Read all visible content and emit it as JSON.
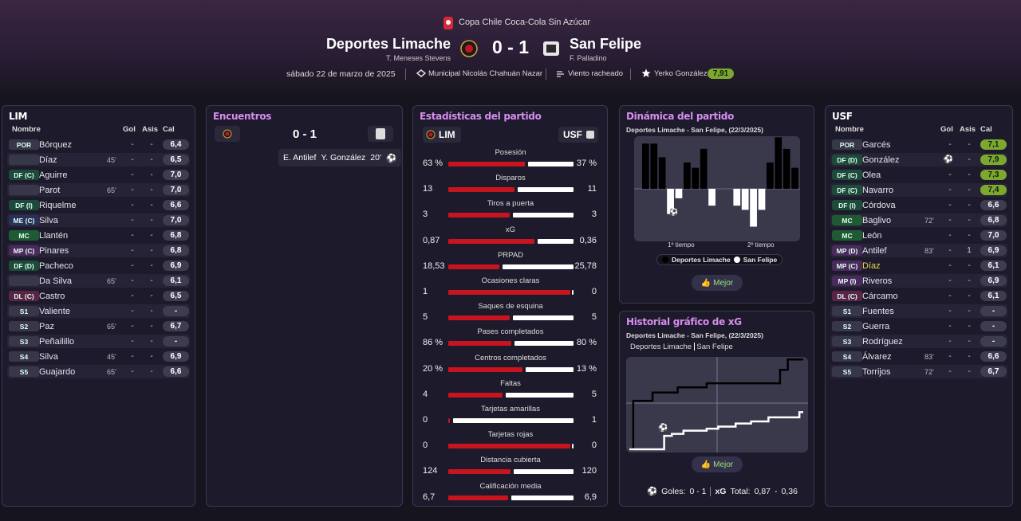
{
  "header": {
    "competition": "Copa Chile Coca-Cola Sin Azúcar",
    "home": "Deportes Limache",
    "home_coach": "T. Meneses Stevens",
    "score": "0 - 1",
    "away": "San Felipe",
    "away_coach": "F. Palladino",
    "date": "sábado 22 de marzo de 2025",
    "stadium": "Municipal Nicolás Chahuán Nazar",
    "weather": "Viento racheado",
    "mvp": "Yerko González",
    "mvp_rating": "7,91"
  },
  "home_lineup": {
    "title": "LIM",
    "columns": [
      "Nombre",
      "Gol",
      "Asis",
      "Cal"
    ],
    "rows": [
      {
        "pos": "POR",
        "name": "Bórquez",
        "gol": "-",
        "asis": "-",
        "cal": "6,4",
        "badge_color": "#38374a"
      },
      {
        "pos": null,
        "name": "Díaz",
        "sub": "out",
        "min": "45'",
        "gol": "-",
        "asis": "-",
        "cal": "6,5",
        "badge_color": "#38374a"
      },
      {
        "pos": "DF (C)",
        "name": "Aguirre",
        "gol": "-",
        "asis": "-",
        "cal": "7,0",
        "badge_color": "#1d4a3b"
      },
      {
        "pos": null,
        "name": "Parot",
        "sub": "out",
        "min": "65'",
        "gol": "-",
        "asis": "-",
        "cal": "7,0",
        "badge_color": "#38374a"
      },
      {
        "pos": "DF (I)",
        "name": "Riquelme",
        "gol": "-",
        "asis": "-",
        "cal": "6,6",
        "badge_color": "#1d4a3b"
      },
      {
        "pos": "ME (C)",
        "name": "Silva",
        "gol": "-",
        "asis": "-",
        "cal": "7,0",
        "badge_color": "#29305a"
      },
      {
        "pos": "MC",
        "name": "Llantén",
        "gol": "-",
        "asis": "-",
        "cal": "6,8",
        "badge_color": "#1f5a35"
      },
      {
        "pos": "MP (C)",
        "name": "Pinares",
        "gol": "-",
        "asis": "-",
        "cal": "6,8",
        "badge_color": "#4a2a5c"
      },
      {
        "pos": "DF (D)",
        "name": "Pacheco",
        "gol": "-",
        "asis": "-",
        "cal": "6,9",
        "badge_color": "#1d4a3b"
      },
      {
        "pos": null,
        "name": "Da Silva",
        "sub": "out",
        "min": "65'",
        "gol": "-",
        "asis": "-",
        "cal": "6,1",
        "badge_color": "#38374a"
      },
      {
        "pos": "DL (C)",
        "name": "Castro",
        "gol": "-",
        "asis": "-",
        "cal": "6,5",
        "badge_color": "#5a2446"
      },
      {
        "pos": "S1",
        "name": "Valiente",
        "gol": "-",
        "asis": "-",
        "cal": "-",
        "badge_color": "#38374a"
      },
      {
        "pos": "S2",
        "name": "Paz",
        "sub": "in",
        "min": "65'",
        "gol": "-",
        "asis": "-",
        "cal": "6,7",
        "badge_color": "#38374a"
      },
      {
        "pos": "S3",
        "name": "Peñailillo",
        "gol": "-",
        "asis": "-",
        "cal": "-",
        "badge_color": "#38374a"
      },
      {
        "pos": "S4",
        "name": "Silva",
        "sub": "in",
        "min": "45'",
        "gol": "-",
        "asis": "-",
        "cal": "6,9",
        "badge_color": "#38374a"
      },
      {
        "pos": "S5",
        "name": "Guajardo",
        "sub": "in",
        "min": "65'",
        "gol": "-",
        "asis": "-",
        "cal": "6,6",
        "badge_color": "#38374a"
      }
    ]
  },
  "away_lineup": {
    "title": "USF",
    "columns": [
      "Nombre",
      "Gol",
      "Asis",
      "Cal"
    ],
    "rows": [
      {
        "pos": "POR",
        "name": "Garcés",
        "gol": "-",
        "asis": "-",
        "cal": "7,1",
        "top": true,
        "badge_color": "#38374a"
      },
      {
        "pos": "DF (D)",
        "name": "González",
        "gol": null,
        "asis": "-",
        "cal": "7,9",
        "top": true,
        "badge_color": "#1d4a3b"
      },
      {
        "pos": "DF (C)",
        "name": "Olea",
        "gol": "-",
        "asis": "-",
        "cal": "7,3",
        "top": true,
        "badge_color": "#1d4a3b"
      },
      {
        "pos": "DF (C)",
        "name": "Navarro",
        "gol": "-",
        "asis": "-",
        "cal": "7,4",
        "top": true,
        "badge_color": "#1d4a3b"
      },
      {
        "pos": "DF (I)",
        "name": "Córdova",
        "gol": "-",
        "asis": "-",
        "cal": "6,6",
        "badge_color": "#1d4a3b"
      },
      {
        "pos": "MC",
        "name": "Baglivo",
        "sub": "out",
        "min": "72'",
        "gol": "-",
        "asis": "-",
        "cal": "6,8",
        "badge_color": "#1f5a35"
      },
      {
        "pos": "MC",
        "name": "León",
        "gol": "-",
        "asis": "-",
        "cal": "7,0",
        "badge_color": "#1f5a35"
      },
      {
        "pos": "MP (D)",
        "name": "Antilef",
        "sub": "out",
        "min": "83'",
        "gol": "-",
        "asis": "1",
        "cal": "6,9",
        "badge_color": "#4a2a5c"
      },
      {
        "pos": "MP (C)",
        "name": "Díaz",
        "name_color": "#e8d84a",
        "gol": "-",
        "asis": "-",
        "cal": "6,1",
        "badge_color": "#4a2a5c"
      },
      {
        "pos": "MP (I)",
        "name": "Riveros",
        "gol": "-",
        "asis": "-",
        "cal": "6,9",
        "badge_color": "#4a2a5c"
      },
      {
        "pos": "DL (C)",
        "name": "Cárcamo",
        "gol": "-",
        "asis": "-",
        "cal": "6,1",
        "badge_color": "#5a2446"
      },
      {
        "pos": "S1",
        "name": "Fuentes",
        "gol": "-",
        "asis": "-",
        "cal": "-",
        "badge_color": "#38374a"
      },
      {
        "pos": "S2",
        "name": "Guerra",
        "gol": "-",
        "asis": "-",
        "cal": "-",
        "badge_color": "#38374a"
      },
      {
        "pos": "S3",
        "name": "Rodríguez",
        "gol": "-",
        "asis": "-",
        "cal": "-",
        "badge_color": "#38374a"
      },
      {
        "pos": "S4",
        "name": "Álvarez",
        "sub": "in",
        "min": "83'",
        "gol": "-",
        "asis": "-",
        "cal": "6,6",
        "badge_color": "#38374a"
      },
      {
        "pos": "S5",
        "name": "Torrijos",
        "sub": "in",
        "min": "72'",
        "gol": "-",
        "asis": "-",
        "cal": "6,7",
        "badge_color": "#38374a"
      }
    ]
  },
  "encounters": {
    "title": "Encuentros",
    "score": "0 - 1",
    "events": [
      {
        "assist": "E. Antilef",
        "scorer": "Y. González",
        "minute": "20'"
      }
    ]
  },
  "stats": {
    "title": "Estadísticas del partido",
    "home": "LIM",
    "away": "USF",
    "home_color": "#c8141e",
    "away_color": "#ffffff",
    "rows": [
      {
        "label": "Posesión",
        "home": 63,
        "away": 37,
        "home_label": "63 %",
        "away_label": "37 %"
      },
      {
        "label": "Disparos",
        "home": 13,
        "away": 11
      },
      {
        "label": "Tiros a puerta",
        "home": 3,
        "away": 3
      },
      {
        "label": "xG",
        "home": 0.87,
        "away": 0.36,
        "home_label": "0,87",
        "away_label": "0,36"
      },
      {
        "label": "PRPAD",
        "home": 18.53,
        "away": 25.78,
        "home_label": "18,53",
        "away_label": "25,78"
      },
      {
        "label": "Ocasiones claras",
        "home": 1,
        "away": 0
      },
      {
        "label": "Saques de esquina",
        "home": 5,
        "away": 5
      },
      {
        "label": "Pases completados",
        "home": 86,
        "away": 80,
        "home_label": "86 %",
        "away_label": "80 %"
      },
      {
        "label": "Centros completados",
        "home": 20,
        "away": 13,
        "home_label": "20 %",
        "away_label": "13 %"
      },
      {
        "label": "Faltas",
        "home": 4,
        "away": 5
      },
      {
        "label": "Tarjetas amarillas",
        "home": 0,
        "away": 1
      },
      {
        "label": "Tarjetas rojas",
        "home": 0,
        "away": 0
      },
      {
        "label": "Distancia cubierta",
        "home": 124,
        "away": 120
      },
      {
        "label": "Calificación media",
        "home": 6.7,
        "away": 6.9,
        "home_label": "6,7",
        "away_label": "6,9"
      }
    ]
  },
  "dynamics": {
    "title": "Dinámica del partido",
    "subtitle": "Deportes Limache - San Felipe, (22/3/2025)",
    "values": [
      43,
      43,
      30,
      -24,
      -9,
      25,
      20,
      38,
      -16,
      0,
      0,
      -16,
      -20,
      -36,
      -20,
      25,
      49,
      38,
      20
    ],
    "ylim": [
      -50,
      50
    ],
    "colors": [
      "#000000",
      "#ffffff"
    ],
    "x_labels": [
      "1º tiempo",
      "2º tiempo"
    ],
    "legend": [
      "Deportes Limache",
      "San Felipe"
    ],
    "button": "Mejor"
  },
  "xg_history": {
    "title": "Historial gráfico de xG",
    "subtitle": "Deportes Limache - San Felipe, (22/3/2025)",
    "xlim": [
      0,
      90
    ],
    "ylim": [
      0,
      0.88
    ],
    "series": [
      {
        "name": "Deportes Limache",
        "color": "#000000",
        "x": [
          0,
          2,
          2,
          12,
          12,
          25,
          25,
          40,
          40,
          78,
          78,
          82,
          82,
          90
        ],
        "values": [
          0,
          0,
          0.47,
          0.47,
          0.55,
          0.55,
          0.6,
          0.6,
          0.64,
          0.64,
          0.77,
          0.77,
          0.87,
          0.87
        ]
      },
      {
        "name": "San Felipe",
        "color": "#ffffff",
        "x": [
          0,
          18,
          18,
          22,
          22,
          28,
          28,
          40,
          40,
          46,
          46,
          55,
          55,
          63,
          63,
          72,
          72,
          88,
          88,
          90
        ],
        "values": [
          0,
          0,
          0.13,
          0.13,
          0.15,
          0.15,
          0.18,
          0.18,
          0.2,
          0.2,
          0.22,
          0.22,
          0.25,
          0.25,
          0.27,
          0.27,
          0.31,
          0.31,
          0.36,
          0.36
        ]
      }
    ],
    "button": "Mejor",
    "goals_label": "Goles:",
    "goals": "0 - 1",
    "xg_label": "xG",
    "total_label": "Total:",
    "home_xg": "0,87",
    "sep": "-",
    "away_xg": "0,36"
  }
}
